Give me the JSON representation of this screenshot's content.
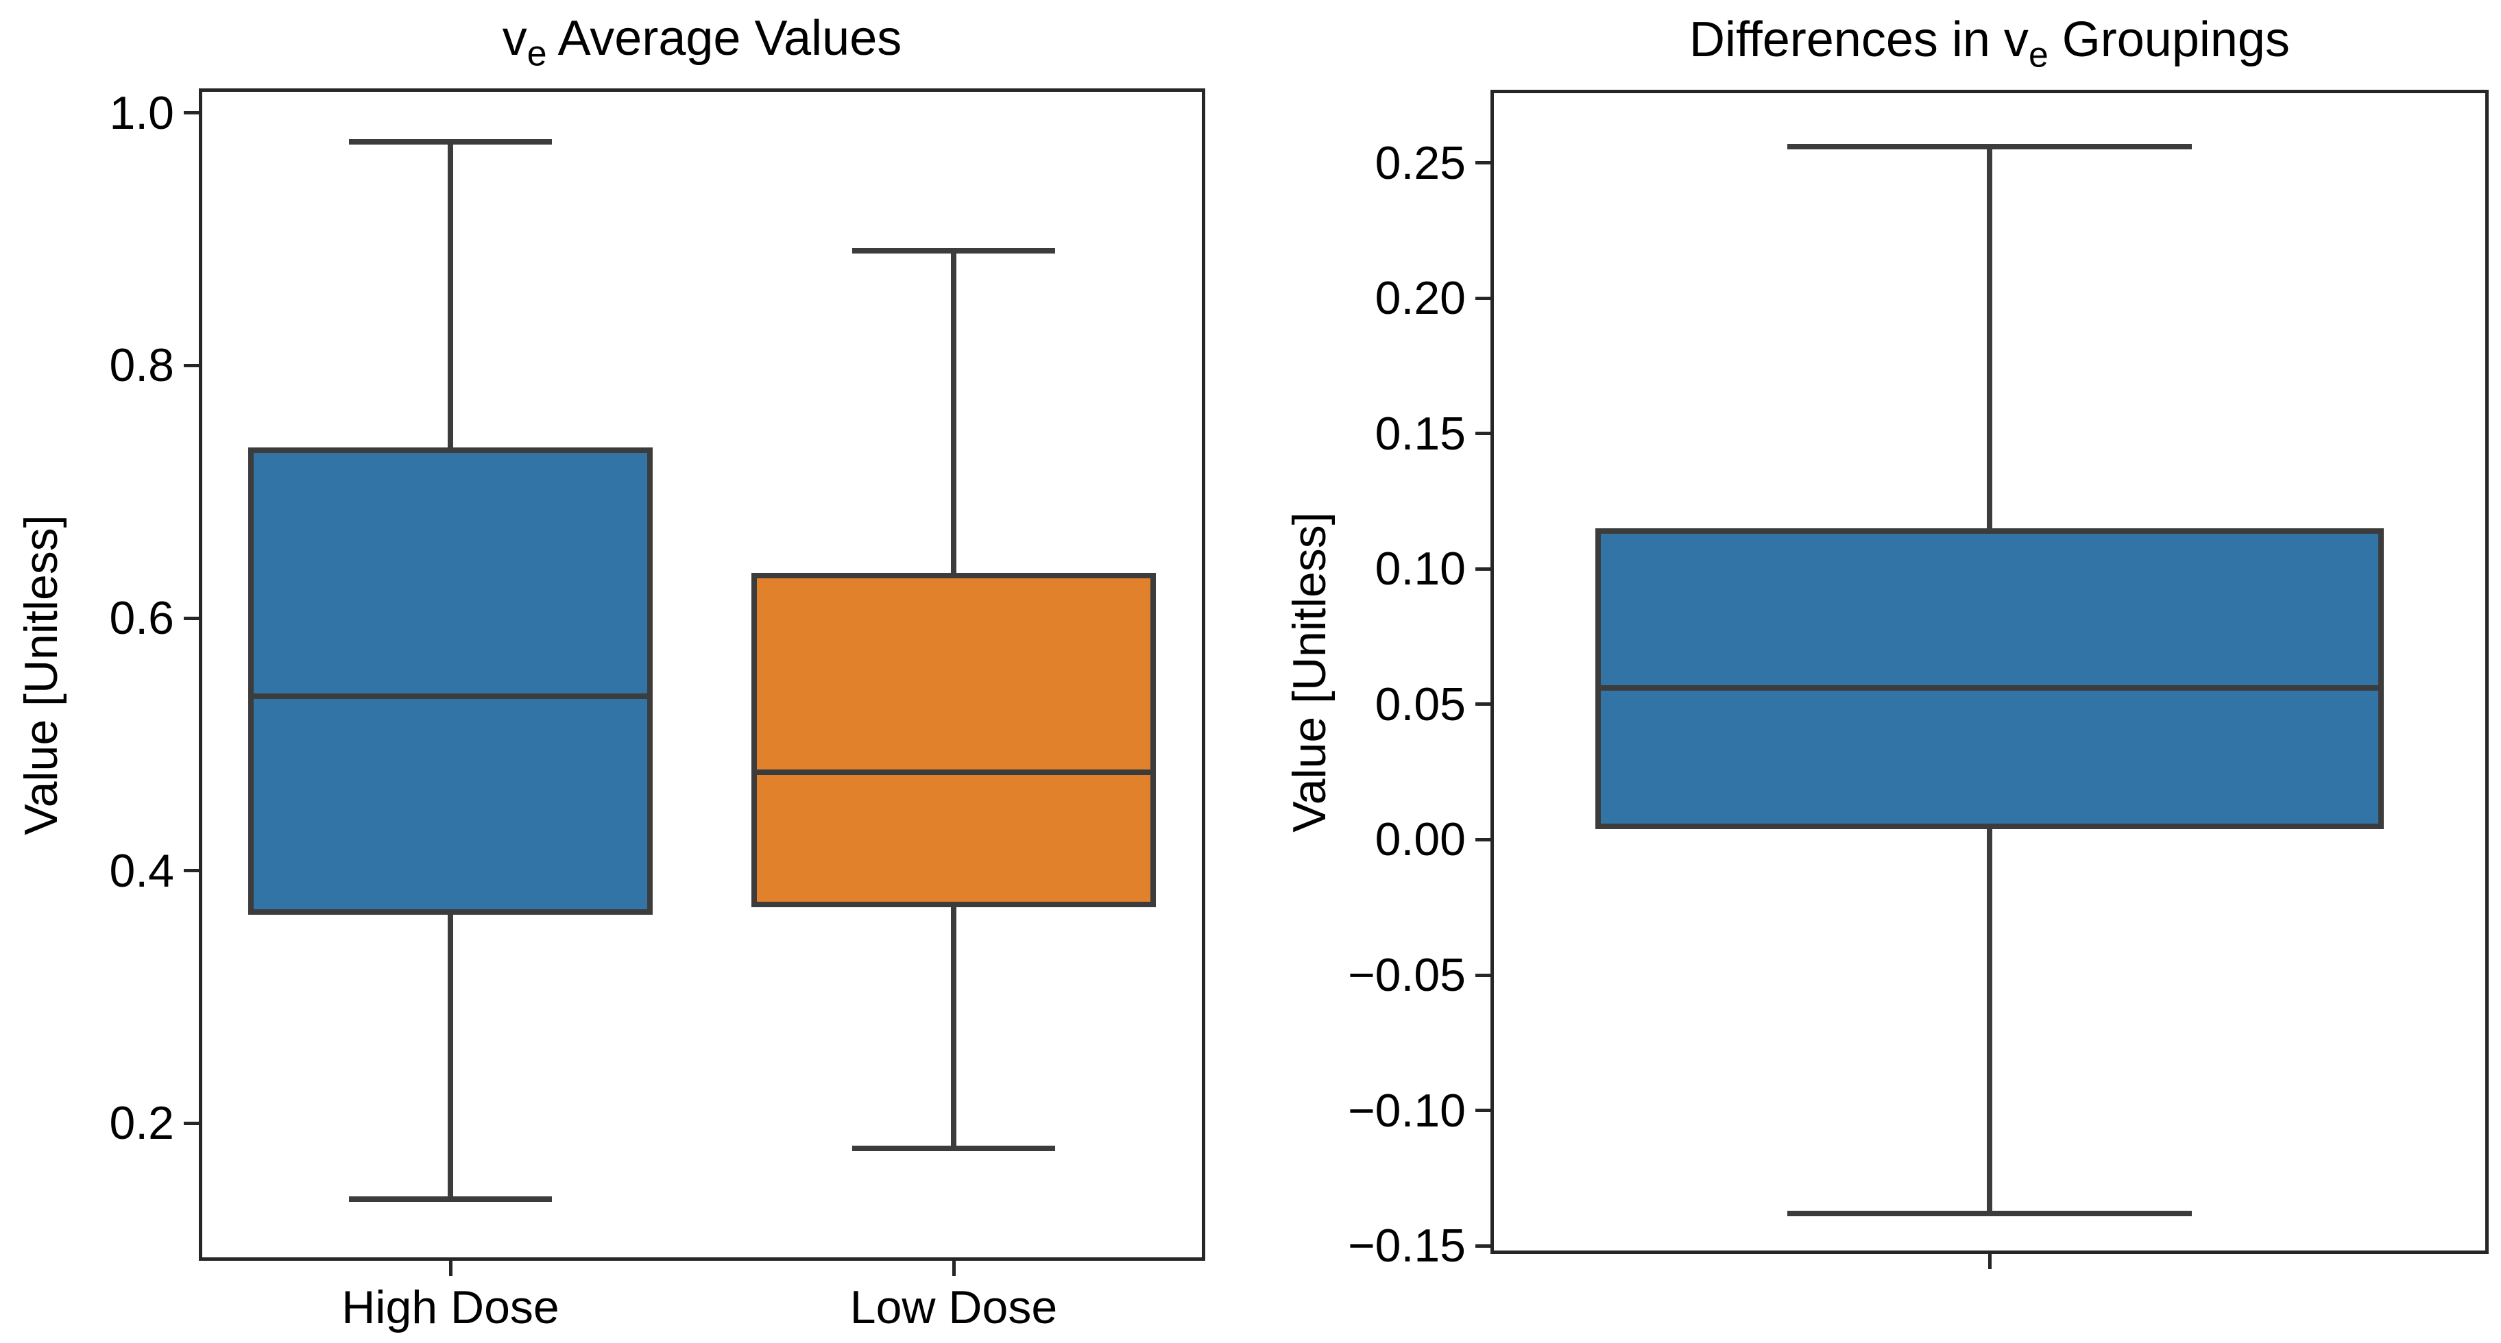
{
  "figure": {
    "background": "#ffffff",
    "text_color": "#000000",
    "frame_color": "#262626"
  },
  "chart_data": [
    {
      "type": "box",
      "title": {
        "pre": "v",
        "sub": "e",
        "post": " Average Values"
      },
      "ylabel": "Value [Unitless]",
      "categories": [
        "High Dose",
        "Low Dose"
      ],
      "ylim": [
        0.091,
        1.0195
      ],
      "yticks": [
        {
          "value": 1.0,
          "label": "1.0"
        },
        {
          "value": 0.8,
          "label": "0.8"
        },
        {
          "value": 0.6,
          "label": "0.6"
        },
        {
          "value": 0.4,
          "label": "0.4"
        },
        {
          "value": 0.2,
          "label": "0.2"
        }
      ],
      "grid": false,
      "legend": null,
      "line_color": "#3C3C3C",
      "boxes": [
        {
          "category": "High Dose",
          "fill": "#3274A6",
          "whisker_low": 0.14,
          "q1": 0.365,
          "median": 0.538,
          "q3": 0.735,
          "whisker_high": 0.977
        },
        {
          "category": "Low Dose",
          "fill": "#E1812C",
          "whisker_low": 0.18,
          "q1": 0.371,
          "median": 0.478,
          "q3": 0.636,
          "whisker_high": 0.891
        }
      ]
    },
    {
      "type": "box",
      "title": {
        "pre": "Differences in v",
        "sub": "e",
        "post": " Groupings"
      },
      "ylabel": "Value [Unitless]",
      "categories": [
        ""
      ],
      "ylim": [
        -0.153,
        0.277
      ],
      "yticks": [
        {
          "value": 0.25,
          "label": "0.25"
        },
        {
          "value": 0.2,
          "label": "0.20"
        },
        {
          "value": 0.15,
          "label": "0.15"
        },
        {
          "value": 0.1,
          "label": "0.10"
        },
        {
          "value": 0.05,
          "label": "0.05"
        },
        {
          "value": 0.0,
          "label": "0.00"
        },
        {
          "value": -0.05,
          "label": "−0.05"
        },
        {
          "value": -0.1,
          "label": "−0.10"
        },
        {
          "value": -0.15,
          "label": "−0.15"
        }
      ],
      "grid": false,
      "legend": null,
      "line_color": "#3C3C3C",
      "boxes": [
        {
          "category": "",
          "fill": "#3274A6",
          "whisker_low": -0.138,
          "q1": 0.004,
          "median": 0.056,
          "q3": 0.115,
          "whisker_high": 0.256
        }
      ]
    }
  ]
}
